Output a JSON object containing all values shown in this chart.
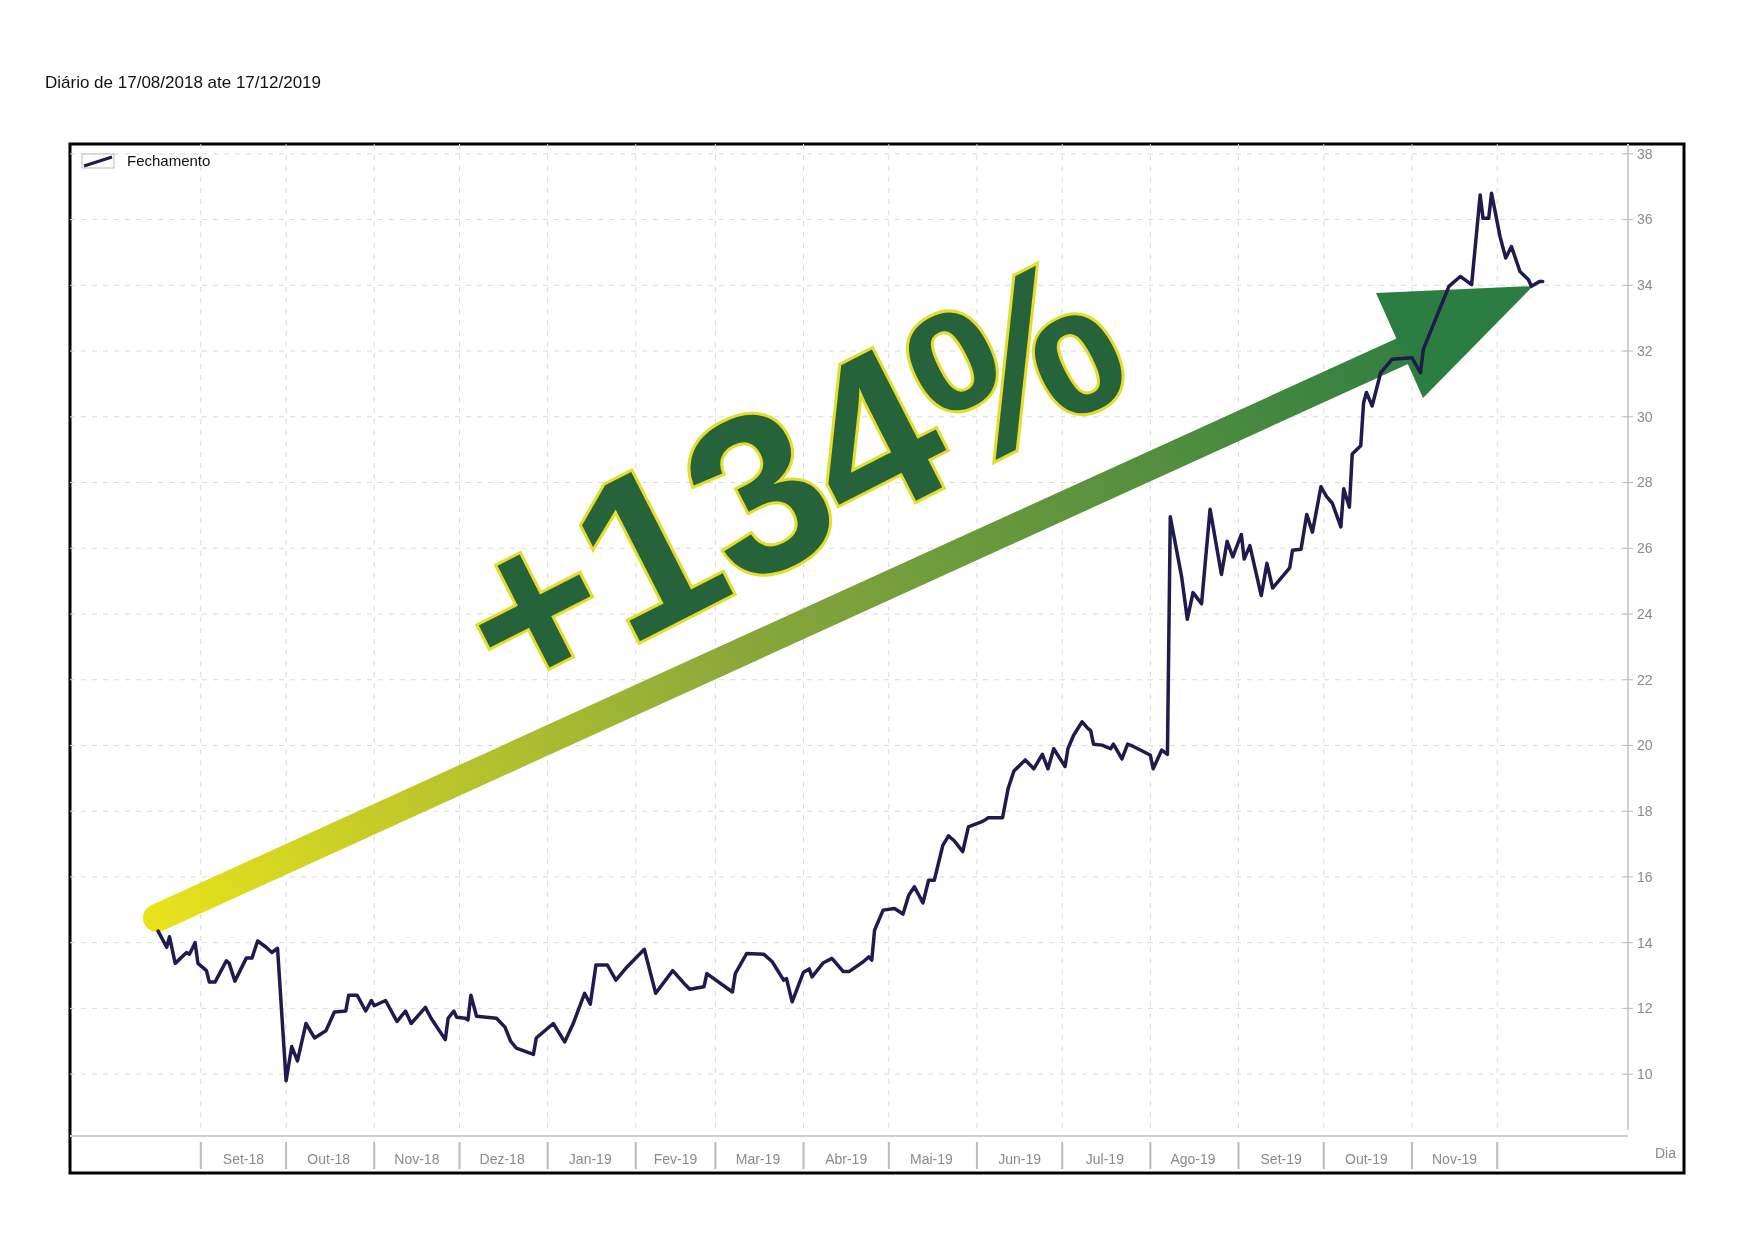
{
  "chart_data": {
    "type": "line",
    "title": "Diário de 17/08/2018 ate 17/12/2019",
    "xlabel": "Dia",
    "annotations": [
      "+134%"
    ],
    "x": [
      "2018-08-17",
      "2018-08-20",
      "2018-08-21",
      "2018-08-23",
      "2018-08-27",
      "2018-08-28",
      "2018-08-30",
      "2018-08-31",
      "2018-09-03",
      "2018-09-04",
      "2018-09-06",
      "2018-09-10",
      "2018-09-11",
      "2018-09-13",
      "2018-09-17",
      "2018-09-19",
      "2018-09-21",
      "2018-09-24",
      "2018-09-26",
      "2018-09-28",
      "2018-10-01",
      "2018-10-03",
      "2018-10-05",
      "2018-10-08",
      "2018-10-11",
      "2018-10-15",
      "2018-10-18",
      "2018-10-22",
      "2018-10-23",
      "2018-10-26",
      "2018-10-29",
      "2018-10-31",
      "2018-11-01",
      "2018-11-05",
      "2018-11-09",
      "2018-11-12",
      "2018-11-14",
      "2018-11-19",
      "2018-11-21",
      "2018-11-26",
      "2018-11-27",
      "2018-11-29",
      "2018-11-30",
      "2018-12-03",
      "2018-12-04",
      "2018-12-05",
      "2018-12-07",
      "2018-12-14",
      "2018-12-17",
      "2018-12-19",
      "2018-12-21",
      "2018-12-27",
      "2018-12-28",
      "2019-01-03",
      "2019-01-07",
      "2019-01-10",
      "2019-01-14",
      "2019-01-16",
      "2019-01-18",
      "2019-01-22",
      "2019-01-25",
      "2019-01-29",
      "2019-02-04",
      "2019-02-08",
      "2019-02-14",
      "2019-02-18",
      "2019-02-20",
      "2019-02-25",
      "2019-02-26",
      "2019-03-07",
      "2019-03-08",
      "2019-03-12",
      "2019-03-18",
      "2019-03-21",
      "2019-03-25",
      "2019-03-26",
      "2019-03-28",
      "2019-04-01",
      "2019-04-03",
      "2019-04-04",
      "2019-04-08",
      "2019-04-11",
      "2019-04-15",
      "2019-04-17",
      "2019-04-22",
      "2019-04-24",
      "2019-04-25",
      "2019-04-26",
      "2019-04-29",
      "2019-05-03",
      "2019-05-06",
      "2019-05-08",
      "2019-05-10",
      "2019-05-13",
      "2019-05-15",
      "2019-05-17",
      "2019-05-20",
      "2019-05-22",
      "2019-05-24",
      "2019-05-27",
      "2019-05-29",
      "2019-06-03",
      "2019-06-05",
      "2019-06-10",
      "2019-06-12",
      "2019-06-14",
      "2019-06-18",
      "2019-06-21",
      "2019-06-24",
      "2019-06-26",
      "2019-06-28",
      "2019-07-02",
      "2019-07-03",
      "2019-07-05",
      "2019-07-08",
      "2019-07-10",
      "2019-07-11",
      "2019-07-12",
      "2019-07-15",
      "2019-07-18",
      "2019-07-19",
      "2019-07-22",
      "2019-07-24",
      "2019-07-26",
      "2019-07-29",
      "2019-08-01",
      "2019-08-02",
      "2019-08-05",
      "2019-08-07",
      "2019-08-08",
      "2019-08-12",
      "2019-08-14",
      "2019-08-16",
      "2019-08-19",
      "2019-08-22",
      "2019-08-26",
      "2019-08-28",
      "2019-08-30",
      "2019-09-02",
      "2019-09-03",
      "2019-09-05",
      "2019-09-09",
      "2019-09-11",
      "2019-09-13",
      "2019-09-17",
      "2019-09-19",
      "2019-09-20",
      "2019-09-23",
      "2019-09-25",
      "2019-09-27",
      "2019-09-30",
      "2019-10-02",
      "2019-10-04",
      "2019-10-07",
      "2019-10-08",
      "2019-10-10",
      "2019-10-11",
      "2019-10-14",
      "2019-10-15",
      "2019-10-16",
      "2019-10-18",
      "2019-10-21",
      "2019-10-22",
      "2019-10-25",
      "2019-11-01",
      "2019-11-04",
      "2019-11-05",
      "2019-11-14",
      "2019-11-18",
      "2019-11-22",
      "2019-11-25",
      "2019-11-26",
      "2019-11-28",
      "2019-11-29",
      "2019-12-02",
      "2019-12-04",
      "2019-12-06",
      "2019-12-09",
      "2019-12-12",
      "2019-12-13",
      "2019-12-16",
      "2019-12-17"
    ],
    "series": [
      {
        "name": "Fechamento",
        "color": "#1f1b4d",
        "values": [
          14.35,
          13.86,
          14.18,
          13.37,
          13.7,
          13.65,
          14.0,
          13.37,
          13.15,
          12.8,
          12.8,
          13.45,
          13.37,
          12.83,
          13.53,
          13.53,
          14.05,
          13.86,
          13.7,
          13.83,
          9.8,
          10.84,
          10.4,
          11.54,
          11.1,
          11.32,
          11.89,
          11.92,
          12.4,
          12.4,
          11.92,
          12.24,
          12.08,
          12.24,
          11.6,
          11.92,
          11.54,
          12.03,
          11.7,
          11.05,
          11.7,
          11.92,
          11.73,
          11.7,
          11.65,
          12.4,
          11.76,
          11.7,
          11.43,
          11.0,
          10.79,
          10.6,
          11.1,
          11.54,
          10.98,
          11.54,
          12.46,
          12.13,
          13.32,
          13.32,
          12.86,
          13.27,
          13.8,
          12.46,
          13.15,
          12.76,
          12.58,
          12.66,
          13.06,
          12.5,
          13.06,
          13.67,
          13.65,
          13.42,
          12.86,
          12.91,
          12.2,
          13.1,
          13.2,
          12.96,
          13.39,
          13.52,
          13.12,
          13.12,
          13.42,
          13.57,
          13.47,
          14.38,
          14.99,
          15.04,
          14.87,
          15.44,
          15.7,
          15.21,
          15.9,
          15.9,
          16.96,
          17.25,
          17.1,
          16.77,
          17.52,
          17.69,
          17.8,
          17.8,
          18.7,
          19.22,
          19.56,
          19.29,
          19.73,
          19.29,
          19.9,
          19.36,
          19.9,
          20.31,
          20.72,
          20.52,
          20.45,
          20.04,
          20.01,
          19.9,
          20.04,
          19.59,
          20.04,
          19.97,
          19.84,
          19.7,
          19.29,
          19.86,
          19.73,
          26.96,
          25.13,
          23.84,
          24.65,
          24.31,
          27.19,
          25.2,
          26.21,
          25.74,
          26.42,
          25.67,
          26.08,
          24.56,
          25.54,
          24.79,
          25.2,
          25.4,
          25.94,
          25.97,
          27.03,
          26.49,
          27.87,
          27.57,
          27.37,
          26.65,
          27.81,
          27.25,
          28.87,
          29.12,
          30.43,
          30.74,
          30.33,
          31.34,
          31.44,
          31.75,
          31.8,
          31.34,
          32.05,
          33.97,
          34.27,
          34.02,
          36.75,
          36.04,
          36.04,
          36.8,
          35.48,
          34.83,
          35.18,
          34.42,
          34.17,
          33.97,
          34.12,
          34.12
        ]
      }
    ],
    "xlim": [
      "2018-07-17",
      "2020-01-16"
    ],
    "xticks": [
      {
        "value": "2018-09-01",
        "label": null
      },
      {
        "value": "2018-09-16",
        "label": "Set-18"
      },
      {
        "value": "2018-10-01",
        "label": null
      },
      {
        "value": "2018-10-16",
        "label": "Out-18"
      },
      {
        "value": "2018-11-01",
        "label": null
      },
      {
        "value": "2018-11-16",
        "label": "Nov-18"
      },
      {
        "value": "2018-12-01",
        "label": null
      },
      {
        "value": "2018-12-16",
        "label": "Dez-18"
      },
      {
        "value": "2019-01-01",
        "label": null
      },
      {
        "value": "2019-01-16",
        "label": "Jan-19"
      },
      {
        "value": "2019-02-01",
        "label": null
      },
      {
        "value": "2019-02-15",
        "label": "Fev-19"
      },
      {
        "value": "2019-03-01",
        "label": null
      },
      {
        "value": "2019-03-16",
        "label": "Mar-19"
      },
      {
        "value": "2019-04-01",
        "label": null
      },
      {
        "value": "2019-04-16",
        "label": "Abr-19"
      },
      {
        "value": "2019-05-01",
        "label": null
      },
      {
        "value": "2019-05-16",
        "label": "Mai-19"
      },
      {
        "value": "2019-06-01",
        "label": null
      },
      {
        "value": "2019-06-16",
        "label": "Jun-19"
      },
      {
        "value": "2019-07-01",
        "label": null
      },
      {
        "value": "2019-07-16",
        "label": "Jul-19"
      },
      {
        "value": "2019-08-01",
        "label": null
      },
      {
        "value": "2019-08-16",
        "label": "Ago-19"
      },
      {
        "value": "2019-09-01",
        "label": null
      },
      {
        "value": "2019-09-16",
        "label": "Set-19"
      },
      {
        "value": "2019-10-01",
        "label": null
      },
      {
        "value": "2019-10-16",
        "label": "Out-19"
      },
      {
        "value": "2019-11-01",
        "label": null
      },
      {
        "value": "2019-11-16",
        "label": "Nov-19"
      },
      {
        "value": "2019-12-01",
        "label": null
      }
    ],
    "ylim": [
      8.3,
      38.3
    ],
    "yticks": [
      10,
      12,
      14,
      16,
      18,
      20,
      22,
      24,
      26,
      28,
      30,
      32,
      34,
      36,
      38
    ],
    "grid": true,
    "legend": "top left",
    "marker": "none",
    "line_style": "solid"
  }
}
